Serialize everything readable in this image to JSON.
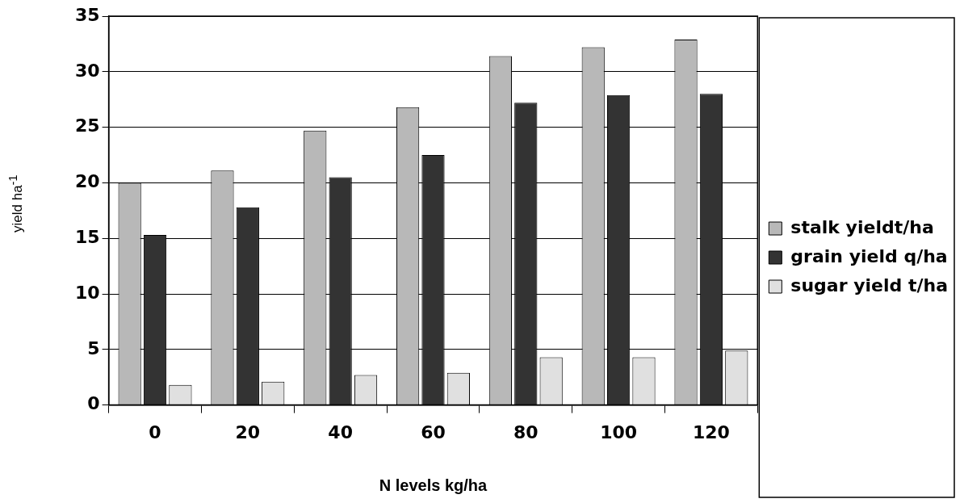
{
  "chart_data": {
    "type": "bar",
    "xlabel": "N levels kg/ha",
    "ylabel": "yield ha$^{-1}$",
    "categories": [
      "0",
      "20",
      "40",
      "60",
      "80",
      "100",
      "120"
    ],
    "series": [
      {
        "name": "stalk yieldt/ha",
        "color": "#b8b8b8",
        "values": [
          20.0,
          21.1,
          24.7,
          26.8,
          31.4,
          32.2,
          32.9
        ]
      },
      {
        "name": "grain yield q/ha",
        "color": "#333333",
        "values": [
          15.3,
          17.8,
          20.5,
          22.5,
          27.2,
          27.9,
          28.0
        ]
      },
      {
        "name": "sugar yield t/ha",
        "color": "#e0e0e0",
        "values": [
          1.8,
          2.1,
          2.7,
          2.9,
          4.3,
          4.3,
          4.9
        ]
      }
    ],
    "ylim": [
      0,
      35
    ],
    "yticks": [
      0,
      5,
      10,
      15,
      20,
      25,
      30,
      35
    ],
    "grid": "y",
    "legend": "right"
  }
}
